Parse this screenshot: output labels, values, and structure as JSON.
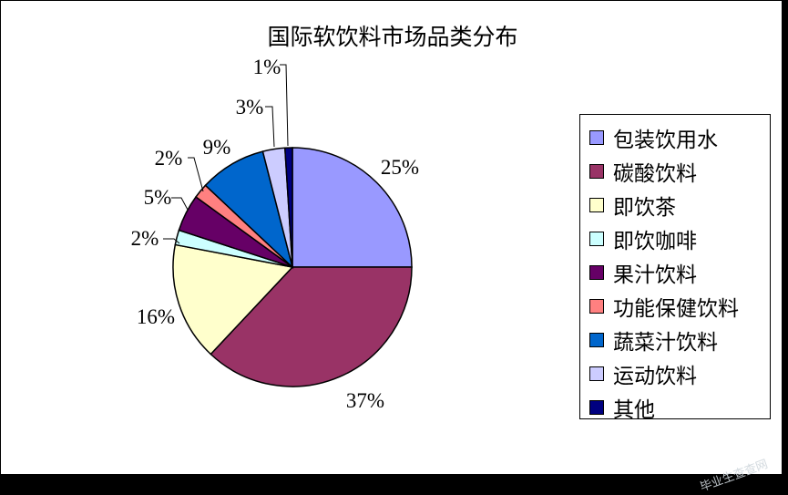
{
  "chart_data": {
    "type": "pie",
    "title": "国际软饮料市场品类分布",
    "legend_position": "right",
    "slices": [
      {
        "name": "包装饮用水",
        "value": 25,
        "label": "25%",
        "color": "#9999ff"
      },
      {
        "name": "碳酸饮料",
        "value": 37,
        "label": "37%",
        "color": "#993366"
      },
      {
        "name": "即饮茶",
        "value": 16,
        "label": "16%",
        "color": "#ffffcc"
      },
      {
        "name": "即饮咖啡",
        "value": 2,
        "label": "2%",
        "color": "#ccffff"
      },
      {
        "name": "果汁饮料",
        "value": 5,
        "label": "5%",
        "color": "#660066"
      },
      {
        "name": "功能保健饮料",
        "value": 2,
        "label": "2%",
        "color": "#ff8080"
      },
      {
        "name": "蔬菜汁饮料",
        "value": 9,
        "label": "9%",
        "color": "#0066cc"
      },
      {
        "name": "运动饮料",
        "value": 3,
        "label": "3%",
        "color": "#ccccff"
      },
      {
        "name": "其他",
        "value": 1,
        "label": "1%",
        "color": "#000080"
      }
    ]
  },
  "watermark": "毕业生查查网"
}
